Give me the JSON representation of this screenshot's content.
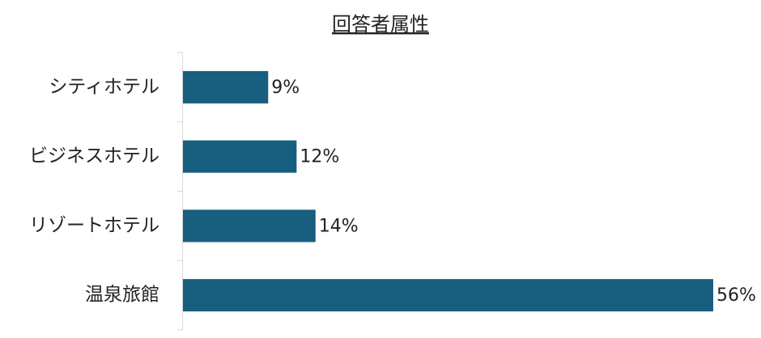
{
  "chart_data": {
    "type": "bar",
    "orientation": "horizontal",
    "title": "回答者属性",
    "categories": [
      "シティホテル",
      "ビジネスホテル",
      "リゾートホテル",
      "温泉旅館"
    ],
    "values": [
      9,
      12,
      14,
      56
    ],
    "value_labels": [
      "9%",
      "12%",
      "14%",
      "56%"
    ],
    "color": "#175e7f"
  }
}
